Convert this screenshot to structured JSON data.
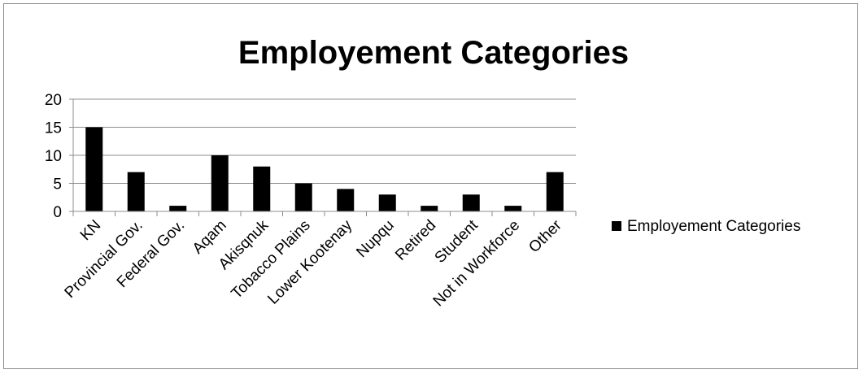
{
  "chart_data": {
    "type": "bar",
    "title": "Employement Categories",
    "xlabel": "",
    "ylabel": "",
    "categories": [
      "KN",
      "Provincial Gov.",
      "Federal Gov.",
      "Aqam",
      "Akisqnuk",
      "Tobacco Plains",
      "Lower Kootenay",
      "Nupqu",
      "Retired",
      "Student",
      "Not in Workforce",
      "Other"
    ],
    "series": [
      {
        "name": "Employement Categories",
        "values": [
          15,
          7,
          1,
          10,
          8,
          5,
          4,
          3,
          1,
          3,
          1,
          7
        ],
        "color": "#000000"
      }
    ],
    "ylim": [
      0,
      20
    ],
    "yticks": [
      0,
      5,
      10,
      15,
      20
    ],
    "grid": true,
    "legend_position": "right"
  }
}
